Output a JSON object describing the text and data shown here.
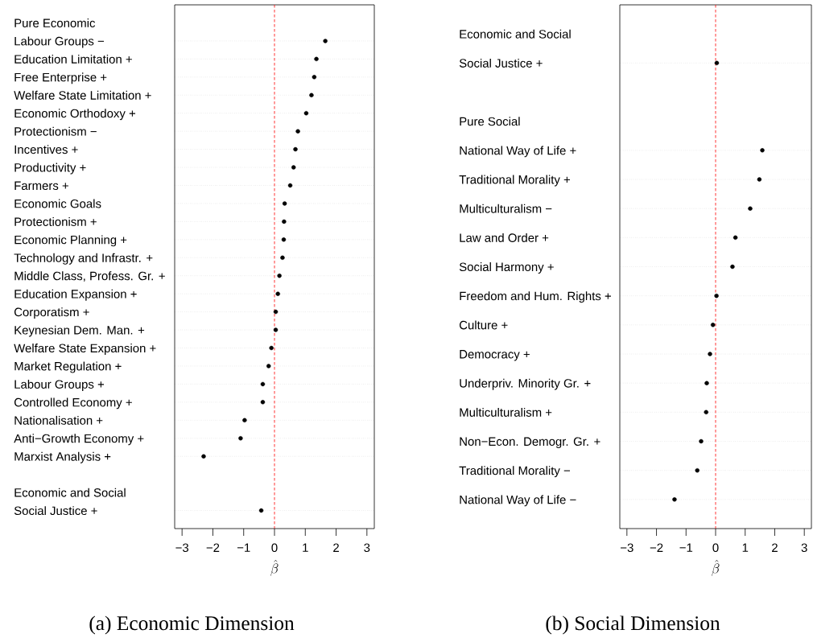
{
  "chart_data": [
    {
      "type": "scatter",
      "orientation": "horizontal",
      "title": "(a) Economic Dimension",
      "xlabel": "\\hat{\\beta}",
      "categories": [
        "Pure Economic",
        "Labour Groups −",
        "Education Limitation +",
        "Free Enterprise +",
        "Welfare State Limitation +",
        "Economic Orthodoxy +",
        "Protectionism −",
        "Incentives +",
        "Productivity +",
        "Farmers +",
        "Economic Goals",
        "Protectionism +",
        "Economic Planning +",
        "Technology and Infrastr. +",
        "Middle Class, Profess. Gr. +",
        "Education Expansion +",
        "Corporatism +",
        "Keynesian Dem. Man. +",
        "Welfare State Expansion +",
        "Market Regulation +",
        "Labour Groups +",
        "Controlled Economy +",
        "Nationalisation +",
        "Anti−Growth Economy +",
        "Marxist Analysis +",
        null,
        "Economic and Social",
        "Social Justice +"
      ],
      "series": [
        {
          "color": "#000000",
          "values": [
            null,
            1.65,
            1.36,
            1.29,
            1.2,
            1.03,
            0.76,
            0.68,
            0.62,
            0.51,
            0.33,
            0.31,
            0.3,
            0.26,
            0.16,
            0.11,
            0.04,
            0.04,
            -0.1,
            -0.19,
            -0.38,
            -0.38,
            -0.97,
            -1.1,
            -2.3,
            null,
            null,
            -0.43
          ]
        }
      ],
      "xlim": [
        -3.24,
        3.24
      ],
      "xticks": [
        {
          "value": -3,
          "label": "−3"
        },
        {
          "value": -2,
          "label": "−2"
        },
        {
          "value": -1,
          "label": "−1"
        },
        0,
        1,
        2,
        3
      ],
      "grid": "y",
      "marker": "circle",
      "ref_lines": [
        {
          "axis": "x",
          "value": 0,
          "color": "#ff0000",
          "line_style": "dashed"
        }
      ]
    },
    {
      "type": "scatter",
      "orientation": "horizontal",
      "title": "(b) Social Dimension",
      "xlabel": "\\hat{\\beta}",
      "categories": [
        "Economic and Social",
        "Social Justice +",
        null,
        "Pure Social",
        "National Way of Life +",
        "Traditional Morality +",
        "Multiculturalism −",
        "Law and Order +",
        "Social Harmony +",
        "Freedom and Hum. Rights +",
        "Culture +",
        "Democracy +",
        "Underpriv. Minority Gr. +",
        "Multiculturalism +",
        "Non−Econ. Demogr. Gr. +",
        "Traditional Morality −",
        "National Way of Life −"
      ],
      "series": [
        {
          "color": "#000000",
          "values": [
            null,
            0.04,
            null,
            null,
            1.58,
            1.48,
            1.17,
            0.67,
            0.57,
            0.03,
            -0.09,
            -0.19,
            -0.3,
            -0.32,
            -0.49,
            -0.62,
            -1.39
          ]
        }
      ],
      "xlim": [
        -3.24,
        3.24
      ],
      "xticks": [
        {
          "value": -3,
          "label": "−3"
        },
        {
          "value": -2,
          "label": "−2"
        },
        {
          "value": -1,
          "label": "−1"
        },
        0,
        1,
        2,
        3
      ],
      "grid": "y",
      "marker": "circle",
      "ref_lines": [
        {
          "axis": "x",
          "value": 0,
          "color": "#ff0000",
          "line_style": "dashed"
        }
      ]
    }
  ]
}
